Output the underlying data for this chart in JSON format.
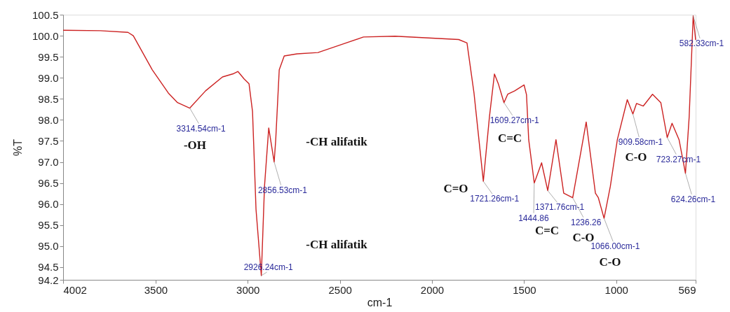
{
  "chart_data": {
    "type": "line",
    "xlabel": "cm-1",
    "ylabel": "%T",
    "x": [
      4002,
      3800,
      3650,
      3621,
      3518,
      3431,
      3381,
      3314.54,
      3229,
      3137,
      3076,
      3053,
      3019,
      2993,
      2974,
      2955,
      2926.24,
      2909,
      2886,
      2856.53,
      2848,
      2829,
      2802,
      2733,
      2619,
      2505,
      2372,
      2200,
      1855,
      1810,
      1772,
      1721.26,
      1688,
      1661,
      1640,
      1609.27,
      1589,
      1551,
      1500,
      1487,
      1475,
      1444.86,
      1405,
      1371.76,
      1327,
      1285,
      1236.26,
      1163,
      1113,
      1097,
      1066.0,
      1032,
      994,
      940,
      909.58,
      890,
      853,
      803,
      758,
      723.27,
      697,
      659,
      624.26,
      604,
      582.33,
      569
    ],
    "series": [
      {
        "color": "#cc2222",
        "values": [
          100.13,
          100.12,
          100.08,
          100.0,
          99.19,
          98.64,
          98.41,
          98.28,
          98.69,
          99.02,
          99.1,
          99.15,
          98.97,
          98.86,
          98.2,
          95.87,
          94.3,
          96.42,
          97.81,
          97.0,
          97.53,
          99.19,
          99.52,
          99.57,
          99.6,
          99.77,
          99.97,
          99.99,
          99.91,
          99.83,
          98.64,
          96.54,
          98.08,
          99.09,
          98.86,
          98.41,
          98.61,
          98.69,
          98.83,
          98.6,
          97.53,
          96.5,
          96.98,
          96.32,
          97.53,
          96.26,
          96.15,
          97.95,
          96.26,
          96.15,
          95.66,
          96.42,
          97.53,
          98.48,
          98.14,
          98.39,
          98.33,
          98.61,
          98.41,
          97.58,
          97.92,
          97.53,
          96.73,
          98.08,
          100.47,
          99.9
        ]
      }
    ],
    "xlim": [
      4002,
      569
    ],
    "xticks": [
      4002,
      3500,
      3000,
      2500,
      2000,
      1500,
      1000,
      569
    ],
    "ylim": [
      94.2,
      100.5
    ],
    "yticks": [
      94.2,
      94.5,
      {
        "value": 95,
        "label": "95.0"
      },
      95.5,
      {
        "value": 96,
        "label": "96.0"
      },
      96.5,
      {
        "value": 97,
        "label": "97.0"
      },
      97.5,
      {
        "value": 98,
        "label": "98.0"
      },
      98.5,
      {
        "value": 99,
        "label": "99.0"
      },
      99.5,
      {
        "value": 100,
        "label": "100.0"
      },
      100.5
    ],
    "grid": false,
    "marker": "none",
    "line_style": "solid",
    "annotations": [
      {
        "text": "3314.54cm-1",
        "x": 3314.54,
        "y": 98.28
      },
      {
        "text": "2926.24cm-1",
        "x": 2926.24,
        "y": 94.3
      },
      {
        "text": "2856.53cm-1",
        "x": 2856.53,
        "y": 97.0
      },
      {
        "text": "1721.26cm-1",
        "x": 1721.26,
        "y": 96.54
      },
      {
        "text": "1609.27cm-1",
        "x": 1609.27,
        "y": 98.41
      },
      {
        "text": "1444.86",
        "x": 1444.86,
        "y": 96.5
      },
      {
        "text": "1371.76cm-1",
        "x": 1371.76,
        "y": 96.32
      },
      {
        "text": "1236.26",
        "x": 1236.26,
        "y": 96.15
      },
      {
        "text": "1066.00cm-1",
        "x": 1066.0,
        "y": 95.66
      },
      {
        "text": "909.58cm-1",
        "x": 909.58,
        "y": 98.14
      },
      {
        "text": "723.27cm-1",
        "x": 723.27,
        "y": 97.58
      },
      {
        "text": "624.26cm-1",
        "x": 624.26,
        "y": 96.73
      },
      {
        "text": "582.33cm-1",
        "x": 582.33,
        "y": 100.47
      },
      "-OH",
      "-CH alifatik",
      "-CH alifatik",
      "C=O",
      "C=C",
      "C=C",
      "C-O",
      "C-O",
      "C-O"
    ]
  }
}
